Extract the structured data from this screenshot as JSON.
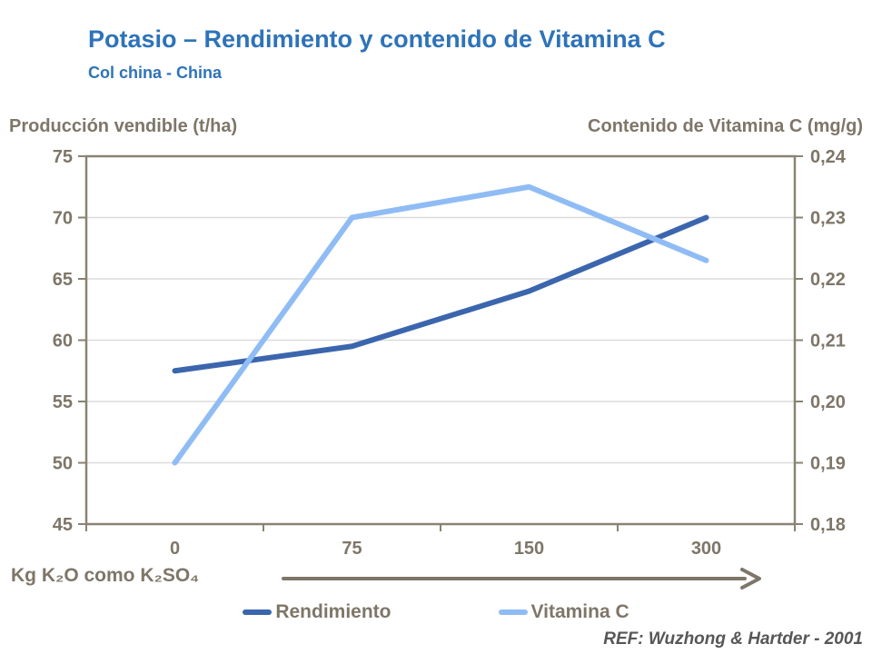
{
  "header": {
    "title": "Potasio – Rendimiento y contenido de Vitamina C",
    "subtitle": "Col china - China",
    "title_color": "#2E73B8"
  },
  "chart_data": {
    "type": "line",
    "categories": [
      "0",
      "75",
      "150",
      "300"
    ],
    "x_axis_caption": "Kg K₂O como K₂SO₄",
    "left_axis": {
      "title": "Producción vendible (t/ha)",
      "min": 45,
      "max": 75,
      "ticks_top_to_bottom": [
        "75",
        "70",
        "65",
        "60",
        "55",
        "50",
        "45"
      ]
    },
    "right_axis": {
      "title": "Contenido de Vitamina C (mg/g)",
      "min": 0.18,
      "max": 0.24,
      "ticks_top_to_bottom": [
        "0,24",
        "0,23",
        "0,22",
        "0,21",
        "0,20",
        "0,19",
        "0,18"
      ]
    },
    "series": [
      {
        "name": "Rendimiento",
        "axis": "left",
        "color": "#3B66AE",
        "values": [
          57.5,
          59.5,
          64.0,
          70.0
        ]
      },
      {
        "name": "Vitamina C",
        "axis": "right",
        "color": "#8FBCF4",
        "values": [
          0.19,
          0.23,
          0.235,
          0.223
        ]
      }
    ],
    "grid": true,
    "legend_position": "bottom",
    "colors": {
      "frame": "#8A8273",
      "gridline": "#DBDBDB",
      "axis_text": "#7E7668",
      "arrow": "#7E7668"
    }
  },
  "footer": {
    "ref": "REF: Wuzhong & Hartder - 2001"
  }
}
